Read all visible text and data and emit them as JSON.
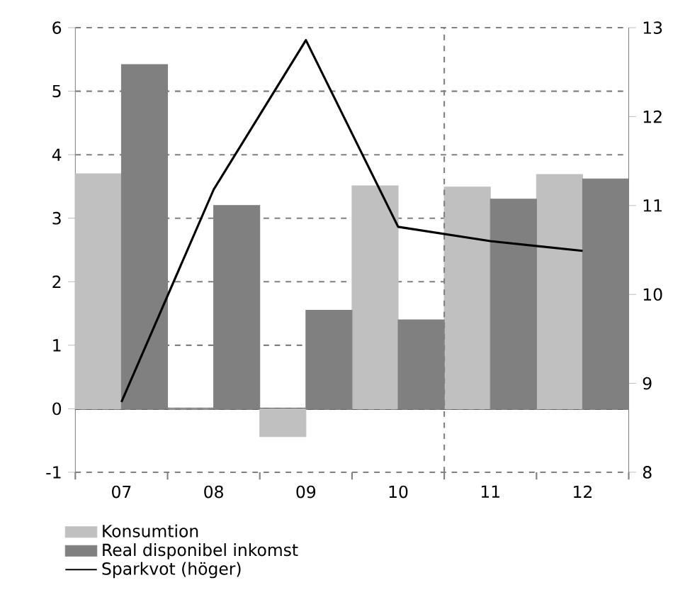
{
  "chart_data": {
    "type": "bar",
    "categories": [
      "07",
      "08",
      "09",
      "10",
      "11",
      "12"
    ],
    "series": [
      {
        "name": "Konsumtion",
        "color": "#c0c0c0",
        "values": [
          3.7,
          0.0,
          -0.44,
          3.51,
          3.49,
          3.69
        ]
      },
      {
        "name": "Real disponibel inkomst",
        "color": "#808080",
        "values": [
          5.42,
          3.2,
          1.55,
          1.4,
          3.3,
          3.62
        ]
      },
      {
        "name": "Sparkvot (höger)",
        "color": "#000000",
        "type": "line",
        "axis": "y2",
        "values": [
          8.79,
          11.18,
          12.86,
          10.76,
          10.6,
          10.49
        ]
      }
    ],
    "ylim": [
      -1,
      6
    ],
    "yticks": [
      -1,
      0,
      1,
      2,
      3,
      4,
      5,
      6
    ],
    "y2lim": [
      8,
      13
    ],
    "y2ticks": [
      8,
      9,
      10,
      11,
      12,
      13
    ],
    "grid": "y",
    "legend": "bottom left",
    "marker": "none",
    "line_style": "solid"
  }
}
